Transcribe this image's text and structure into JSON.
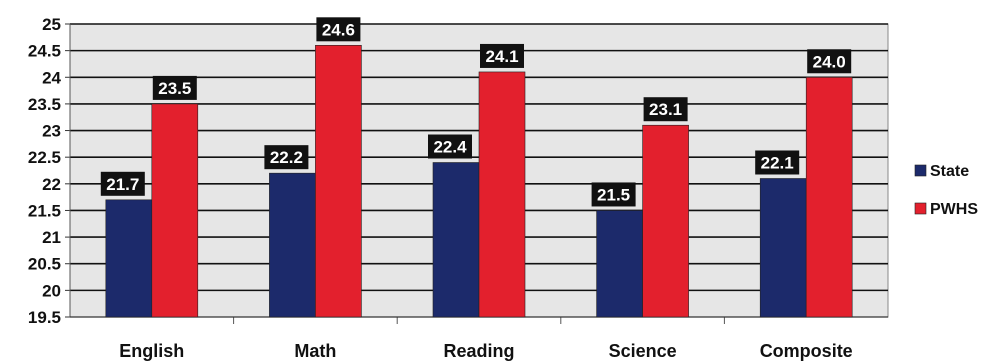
{
  "chart_data": {
    "type": "bar",
    "categories": [
      "English",
      "Math",
      "Reading",
      "Science",
      "Composite"
    ],
    "series": [
      {
        "name": "State",
        "values": [
          21.7,
          22.2,
          22.4,
          21.5,
          22.1
        ],
        "color": "#1c2a6b"
      },
      {
        "name": "PWHS",
        "values": [
          23.5,
          24.6,
          24.1,
          23.1,
          24.0
        ],
        "color": "#e3202d"
      }
    ],
    "data_labels": [
      [
        "21.7",
        "22.2",
        "22.4",
        "21.5",
        "22.1"
      ],
      [
        "23.5",
        "24.6",
        "24.1",
        "23.1",
        "24.0"
      ]
    ],
    "yticks": [
      "19.5",
      "20",
      "20.5",
      "21",
      "21.5",
      "22",
      "22.5",
      "23",
      "23.5",
      "24",
      "24.5",
      "25"
    ],
    "ylim": [
      19.5,
      25
    ],
    "title": "",
    "xlabel": "",
    "ylabel": "",
    "grid": true,
    "legend_position": "right",
    "plot_background": "#e6e6e6"
  }
}
